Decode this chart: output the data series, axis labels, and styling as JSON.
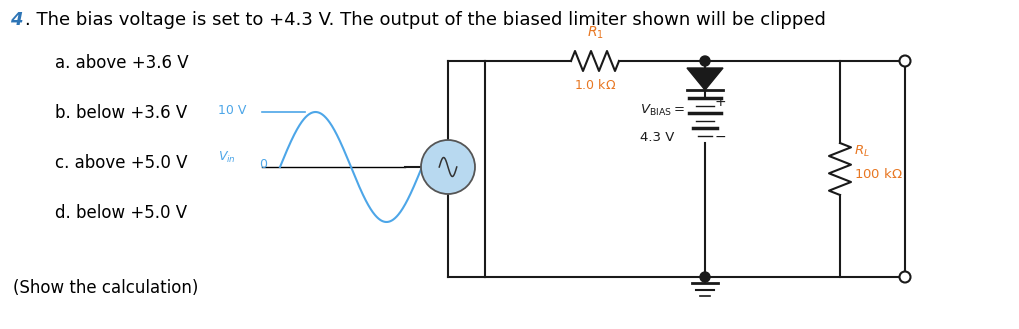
{
  "title_bullet_color": "#2E75B6",
  "title_text": ". The bias voltage is set to +4.3 V. The output of the biased limiter shown will be clipped",
  "options": [
    "a. above +3.6 V",
    "b. below +3.6 V",
    "c. above +5.0 V",
    "d. below +5.0 V"
  ],
  "show_calc": "(Show the calculation)",
  "bg_color": "#ffffff",
  "text_color": "#000000",
  "circuit_color": "#1a1a1a",
  "circuit_label_color": "#E87722",
  "sine_color": "#4da6e8",
  "sine_label_color": "#4da6e8",
  "font_size_title": 13,
  "font_size_options": 12
}
